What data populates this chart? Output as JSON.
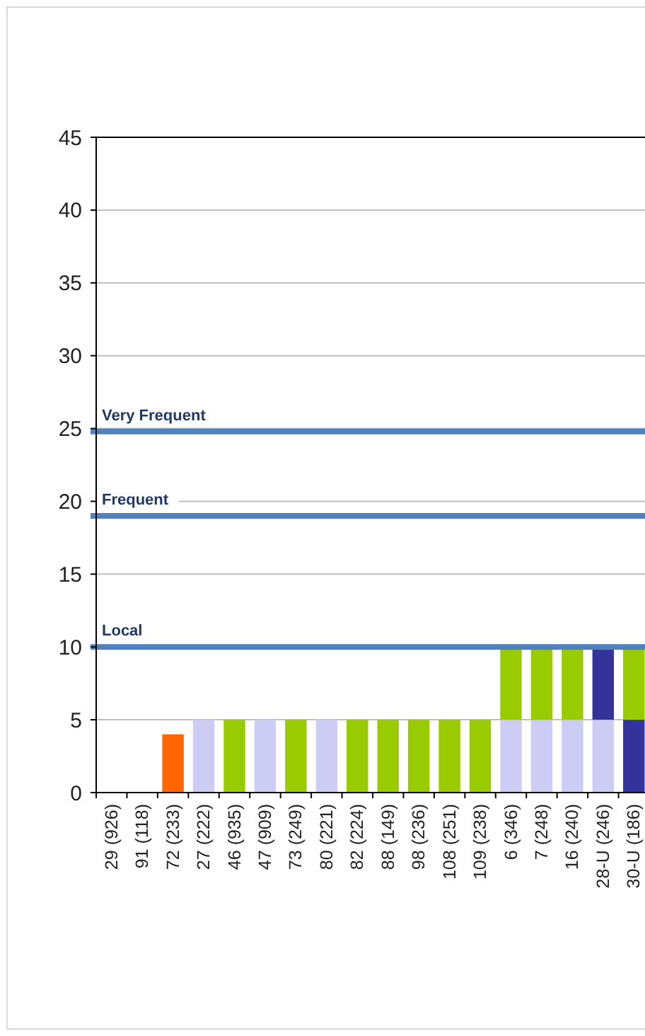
{
  "chart_data": {
    "type": "bar",
    "stacked": true,
    "categories": [
      "29 (926)",
      "91 (118)",
      "72 (233)",
      "27 (222)",
      "46 (935)",
      "47 (909)",
      "73 (249)",
      "80 (221)",
      "82 (224)",
      "88 (149)",
      "98 (236)",
      "108 (251)",
      "109 (238)",
      "6 (346)",
      "7 (248)",
      "16 (240)",
      "28-U (246)",
      "30-U (186)"
    ],
    "series": [
      {
        "values": [
          null,
          null,
          4,
          5,
          5,
          5,
          5,
          5,
          5,
          5,
          5,
          5,
          5,
          5,
          5,
          5,
          5,
          5
        ],
        "colors": [
          null,
          null,
          "#ff6600",
          "#ccccf5",
          "#99cc00",
          "#ccccf5",
          "#99cc00",
          "#ccccf5",
          "#99cc00",
          "#99cc00",
          "#99cc00",
          "#99cc00",
          "#99cc00",
          "#ccccf5",
          "#ccccf5",
          "#ccccf5",
          "#ccccf5",
          "#333399"
        ]
      },
      {
        "values": [
          null,
          null,
          null,
          null,
          null,
          null,
          null,
          null,
          null,
          null,
          null,
          null,
          null,
          5,
          5,
          5,
          5,
          5
        ],
        "colors": [
          null,
          null,
          null,
          null,
          null,
          null,
          null,
          null,
          null,
          null,
          null,
          null,
          null,
          "#99cc00",
          "#99cc00",
          "#99cc00",
          "#333399",
          "#99cc00"
        ]
      }
    ],
    "ylim": [
      0,
      45
    ],
    "yticks": [
      0,
      5,
      10,
      15,
      20,
      25,
      30,
      35,
      40,
      45
    ],
    "grid": "y",
    "ref_lines": [
      {
        "axis": "y",
        "value": 24.8,
        "label": "Very Frequent",
        "color": "#4f81bd"
      },
      {
        "axis": "y",
        "value": 19,
        "label": "Frequent",
        "color": "#4f81bd"
      },
      {
        "axis": "y",
        "value": 10,
        "label": "Local",
        "color": "#4f81bd"
      }
    ]
  }
}
